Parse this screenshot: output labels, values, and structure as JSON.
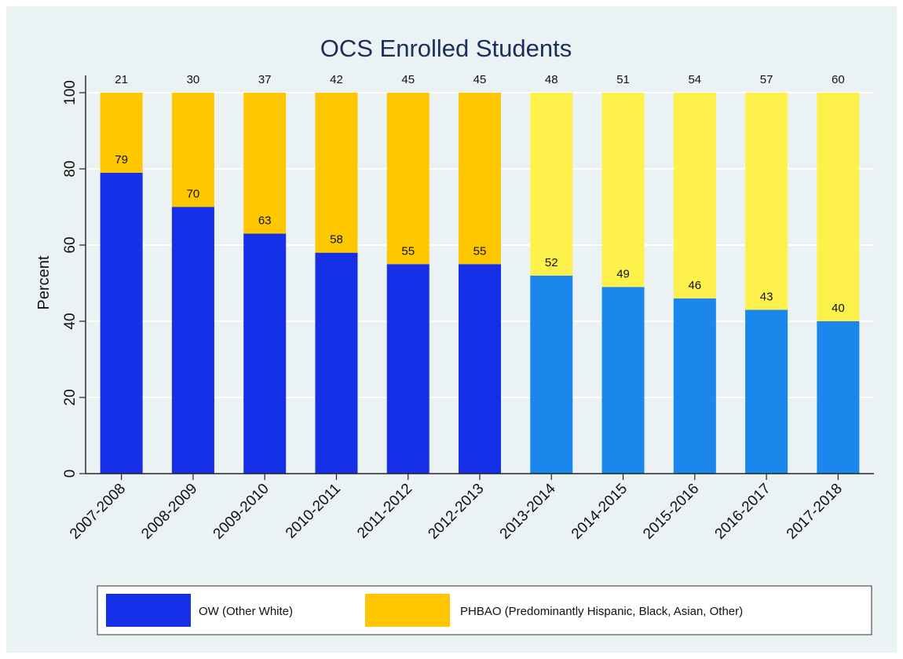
{
  "chart_data": {
    "type": "bar",
    "stacked": true,
    "title": "OCS Enrolled Students",
    "xlabel": "",
    "ylabel": "Percent",
    "ylim": [
      0,
      100
    ],
    "yticks": [
      0,
      20,
      40,
      60,
      80,
      100
    ],
    "grid": true,
    "legend_position": "bottom",
    "categories": [
      "2007-2008",
      "2008-2009",
      "2009-2010",
      "2010-2011",
      "2011-2012",
      "2012-2013",
      "2013-2014",
      "2014-2015",
      "2015-2016",
      "2016-2017",
      "2017-2018"
    ],
    "series": [
      {
        "name": "OW (Other White)",
        "values": [
          79,
          70,
          63,
          58,
          55,
          55,
          52,
          49,
          46,
          43,
          40
        ],
        "color": "#1530e6",
        "projected_color": "#1b86ec"
      },
      {
        "name": "PHBAO (Predominantly Hispanic, Black, Asian, Other)",
        "values": [
          21,
          30,
          37,
          42,
          45,
          45,
          48,
          51,
          54,
          57,
          60
        ],
        "color": "#ffc700",
        "projected_color": "#fff14c"
      }
    ],
    "projected_from_index": 6
  }
}
